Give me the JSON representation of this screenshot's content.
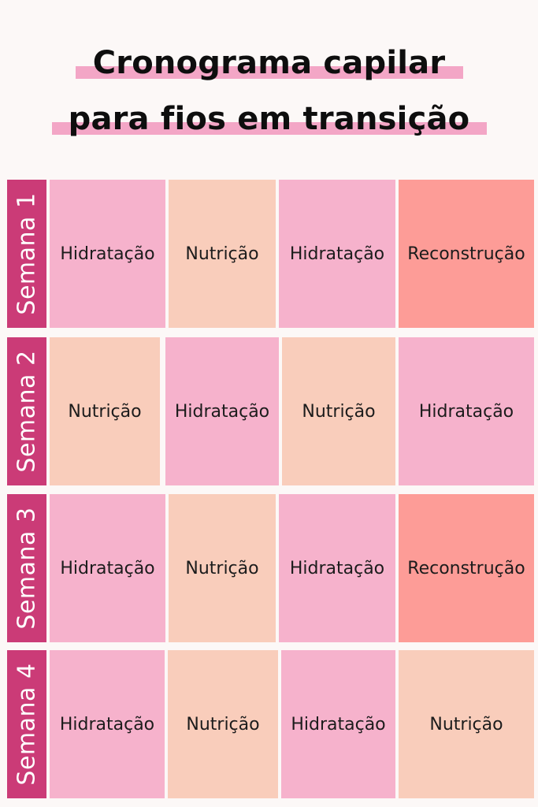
{
  "title": {
    "line1": "Cronograma capilar",
    "line2": "para fios em transição"
  },
  "colors": {
    "background": "#fcf8f7",
    "highlight": "#f3a6c6",
    "week_label": "#cb3b77",
    "hidratacao": "#f6b2cc",
    "nutricao": "#f9cdbb",
    "reconstrucao": "#fd9c97"
  },
  "weeks": [
    {
      "label": "Semana 1",
      "cells": [
        "Hidratação",
        "Nutrição",
        "Hidratação",
        "Reconstrução"
      ]
    },
    {
      "label": "Semana 2",
      "cells": [
        "Nutrição",
        "Hidratação",
        "Nutrição",
        "Hidratação"
      ]
    },
    {
      "label": "Semana 3",
      "cells": [
        "Hidratação",
        "Nutrição",
        "Hidratação",
        "Reconstrução"
      ]
    },
    {
      "label": "Semana 4",
      "cells": [
        "Hidratação",
        "Nutrição",
        "Hidratação",
        "Nutrição"
      ]
    }
  ]
}
